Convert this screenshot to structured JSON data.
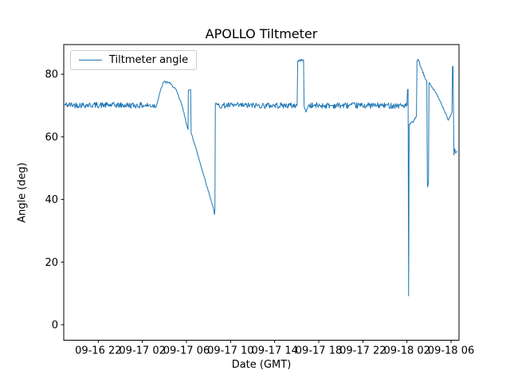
{
  "figure": {
    "title": "APOLLO Tiltmeter",
    "background_color": "#ffffff"
  },
  "chart_data": {
    "type": "line",
    "title": "APOLLO Tiltmeter",
    "xlabel": "Date (GMT)",
    "ylabel": "Angle (deg)",
    "grid": false,
    "line_color": "#1f77b4",
    "legend": {
      "position": "upper-left",
      "entries": [
        "Tiltmeter angle"
      ]
    },
    "x_axis": {
      "unit": "hours since 09-16 22:00 GMT",
      "tick_hours": [
        0,
        4,
        8,
        12,
        16,
        20,
        24,
        28,
        32
      ],
      "tick_labels": [
        "09-16 22",
        "09-17 02",
        "09-17 06",
        "09-17 10",
        "09-17 14",
        "09-17 18",
        "09-17 22",
        "09-18 02",
        "09-18 06"
      ],
      "xlim_hours": [
        -3.13,
        32.72
      ]
    },
    "y_axis": {
      "tick_values": [
        0,
        20,
        40,
        60,
        80
      ],
      "ylim": [
        -4.95,
        89.46
      ]
    },
    "series": [
      {
        "name": "Tiltmeter angle",
        "segments_format": "[hour_start, angle_start_deg, hour_end, angle_end_deg, noise_amplitude_deg]",
        "segments": [
          [
            -3.06,
            70.2,
            5.3,
            70.0,
            0.95
          ],
          [
            5.3,
            70.3,
            5.62,
            74.5,
            0.25
          ],
          [
            5.62,
            74.5,
            5.9,
            77.3,
            0.35
          ],
          [
            5.9,
            77.5,
            6.45,
            77.4,
            0.45
          ],
          [
            6.45,
            77.2,
            6.99,
            75.4,
            0.3
          ],
          [
            6.99,
            75.4,
            7.55,
            70.5,
            0.45
          ],
          [
            7.55,
            70.5,
            7.9,
            65.8,
            0.4
          ],
          [
            7.9,
            65.8,
            8.08,
            63.0,
            0.3
          ],
          [
            8.08,
            63.0,
            8.14,
            62.3,
            0.15
          ],
          [
            8.14,
            62.3,
            8.17,
            74.8,
            0
          ],
          [
            8.17,
            74.8,
            8.38,
            75.0,
            0.15
          ],
          [
            8.38,
            75.0,
            8.42,
            61.2,
            0
          ],
          [
            8.42,
            61.2,
            8.5,
            60.6,
            0.2
          ],
          [
            8.5,
            60.6,
            10.46,
            37.0,
            0.3
          ],
          [
            10.46,
            37.0,
            10.53,
            35.2,
            0.15
          ],
          [
            10.53,
            35.2,
            10.58,
            36.6,
            0.1
          ],
          [
            10.58,
            36.6,
            10.62,
            70.3,
            0
          ],
          [
            10.62,
            70.0,
            18.04,
            70.0,
            0.95
          ],
          [
            18.04,
            70.3,
            18.09,
            84.2,
            0
          ],
          [
            18.09,
            84.2,
            18.62,
            84.6,
            0.35
          ],
          [
            18.62,
            84.5,
            18.67,
            69.8,
            0
          ],
          [
            18.67,
            69.8,
            18.83,
            67.9,
            0.3
          ],
          [
            18.83,
            67.9,
            19.05,
            69.8,
            0.3
          ],
          [
            19.05,
            70.0,
            28.0,
            70.0,
            0.95
          ],
          [
            28.0,
            70.3,
            28.05,
            75.0,
            0
          ],
          [
            28.05,
            75.0,
            28.1,
            75.2,
            0.1
          ],
          [
            28.1,
            75.2,
            28.15,
            9.2,
            0
          ],
          [
            28.15,
            9.2,
            28.2,
            64.0,
            0
          ],
          [
            28.2,
            64.0,
            28.6,
            64.8,
            0.45
          ],
          [
            28.6,
            64.8,
            28.86,
            66.8,
            0.35
          ],
          [
            28.86,
            66.8,
            28.91,
            84.3,
            0
          ],
          [
            28.91,
            84.3,
            29.05,
            84.6,
            0.25
          ],
          [
            29.05,
            84.6,
            29.28,
            82.0,
            0.3
          ],
          [
            29.28,
            82.0,
            29.68,
            78.4,
            0.4
          ],
          [
            29.68,
            78.4,
            29.8,
            77.9,
            0.25
          ],
          [
            29.8,
            77.9,
            29.85,
            44.8,
            0
          ],
          [
            29.85,
            44.8,
            29.89,
            44.0,
            0.1
          ],
          [
            29.89,
            44.0,
            29.95,
            45.8,
            0.1
          ],
          [
            29.95,
            45.8,
            30.0,
            77.3,
            0
          ],
          [
            30.0,
            77.3,
            30.58,
            74.3,
            0.3
          ],
          [
            30.58,
            74.3,
            31.1,
            70.7,
            0.3
          ],
          [
            31.1,
            70.7,
            31.58,
            67.0,
            0.3
          ],
          [
            31.58,
            67.0,
            31.74,
            65.3,
            0.2
          ],
          [
            31.74,
            65.3,
            32.08,
            67.8,
            0.25
          ],
          [
            32.08,
            67.8,
            32.13,
            82.4,
            0
          ],
          [
            32.13,
            82.4,
            32.18,
            82.5,
            0.1
          ],
          [
            32.18,
            82.5,
            32.26,
            54.2,
            0
          ],
          [
            32.26,
            54.2,
            32.33,
            56.2,
            0.15
          ],
          [
            32.33,
            56.2,
            32.42,
            54.8,
            0.15
          ],
          [
            32.42,
            54.8,
            32.55,
            55.5,
            0.2
          ]
        ]
      }
    ]
  }
}
